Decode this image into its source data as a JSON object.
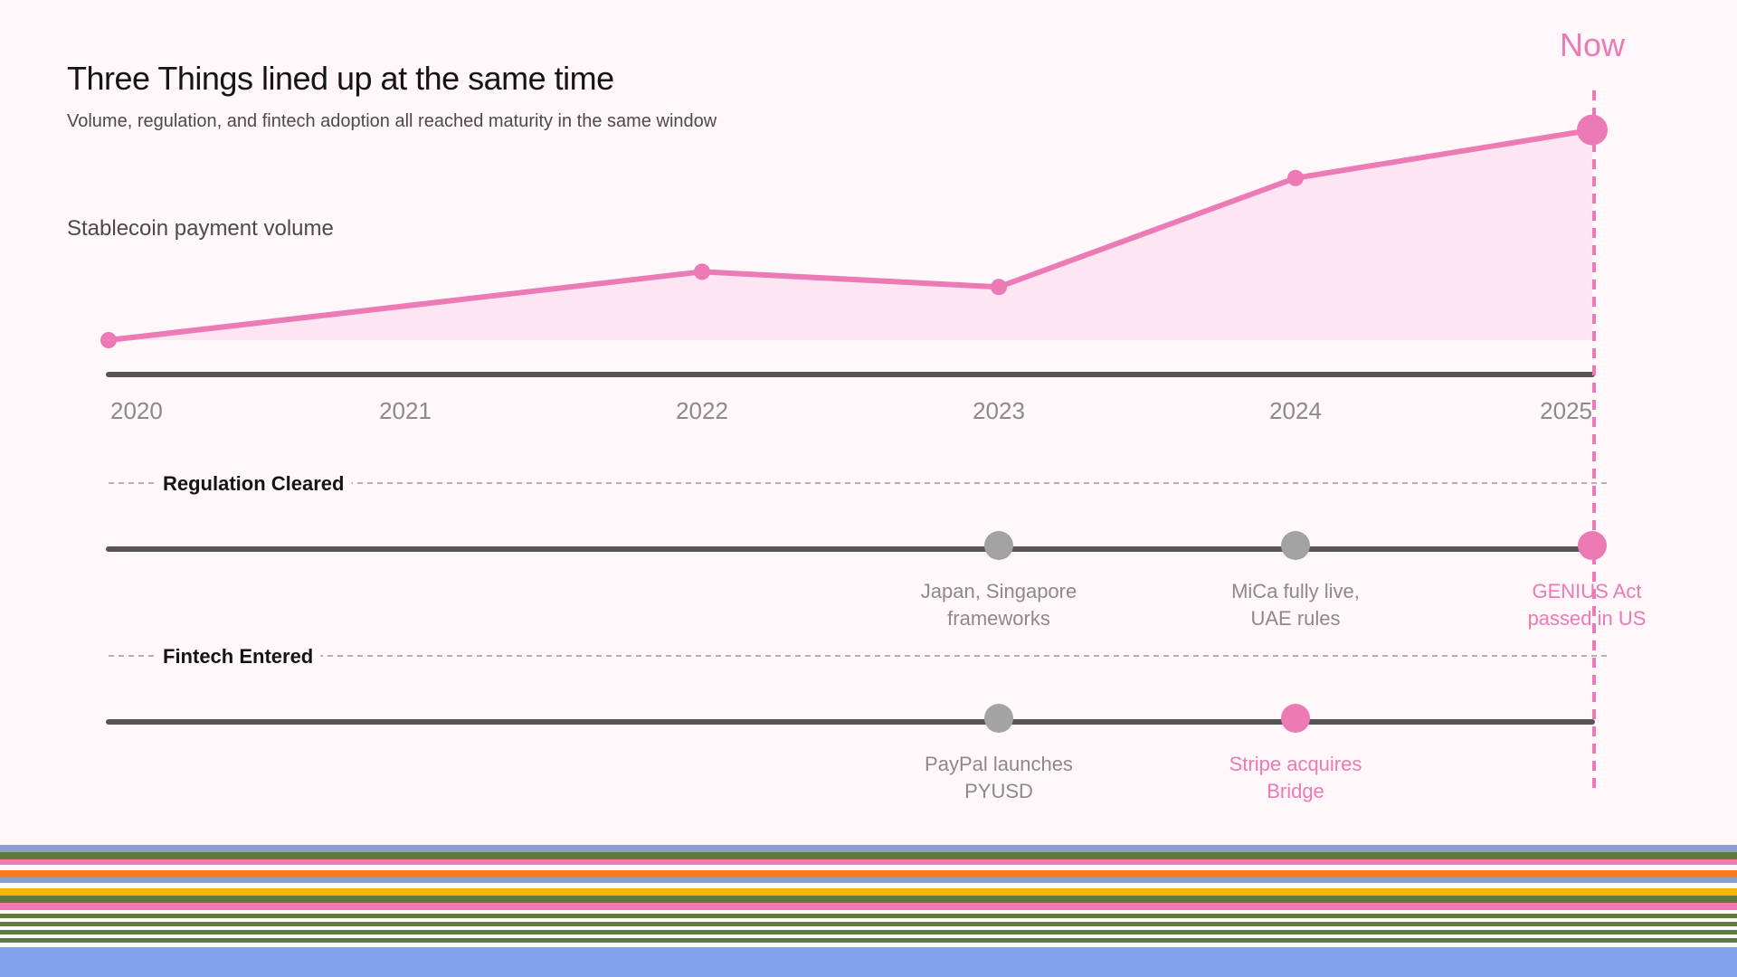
{
  "header": {
    "title": "Three Things lined up at the same time",
    "subtitle": "Volume, regulation, and fintech adoption all reached maturity in the same window"
  },
  "now_label": "Now",
  "colors": {
    "accent": "#ec7ab5",
    "fill": "#fde6f1",
    "axis": "#555555",
    "inactive_dot": "#a3a3a3",
    "muted_text": "#8a8a8a",
    "background": "#fff7fa"
  },
  "chart_data": {
    "type": "area",
    "series_label": "Stablecoin payment volume",
    "x": [
      2020,
      2022,
      2023,
      2024,
      2025
    ],
    "y": [
      0,
      27,
      21,
      64,
      83
    ],
    "ylim": [
      0,
      100
    ],
    "xlim": [
      2020,
      2025
    ],
    "tick_labels": [
      "2020",
      "2021",
      "2022",
      "2023",
      "2024",
      "2025"
    ],
    "grid": false,
    "legend": "none",
    "lanes": [
      {
        "title": "Regulation Cleared",
        "events": [
          {
            "x": 2023,
            "label": [
              "Japan, Singapore",
              "frameworks"
            ],
            "highlight": false
          },
          {
            "x": 2024,
            "label": [
              "MiCa fully live,",
              "UAE rules"
            ],
            "highlight": false
          },
          {
            "x": 2025,
            "label": [
              "GENIUS Act",
              "passed in US"
            ],
            "highlight": true
          }
        ]
      },
      {
        "title": "Fintech Entered",
        "events": [
          {
            "x": 2023,
            "label": [
              "PayPal launches",
              "PYUSD"
            ],
            "highlight": false
          },
          {
            "x": 2024,
            "label": [
              "Stripe acquires",
              "Bridge"
            ],
            "highlight": true
          }
        ]
      }
    ]
  },
  "footer_stripes": [
    "#8ba0c8",
    "#5e7a3e",
    "#ec7ab5",
    "#f57c1f",
    "#8ba0c8",
    "#f2b700",
    "#5e7a3e",
    "#ec7ab5",
    "#5e7a3e",
    "#5e7a3e",
    "#5e7a3e",
    "#5e7a3e",
    "#84a3ee"
  ]
}
